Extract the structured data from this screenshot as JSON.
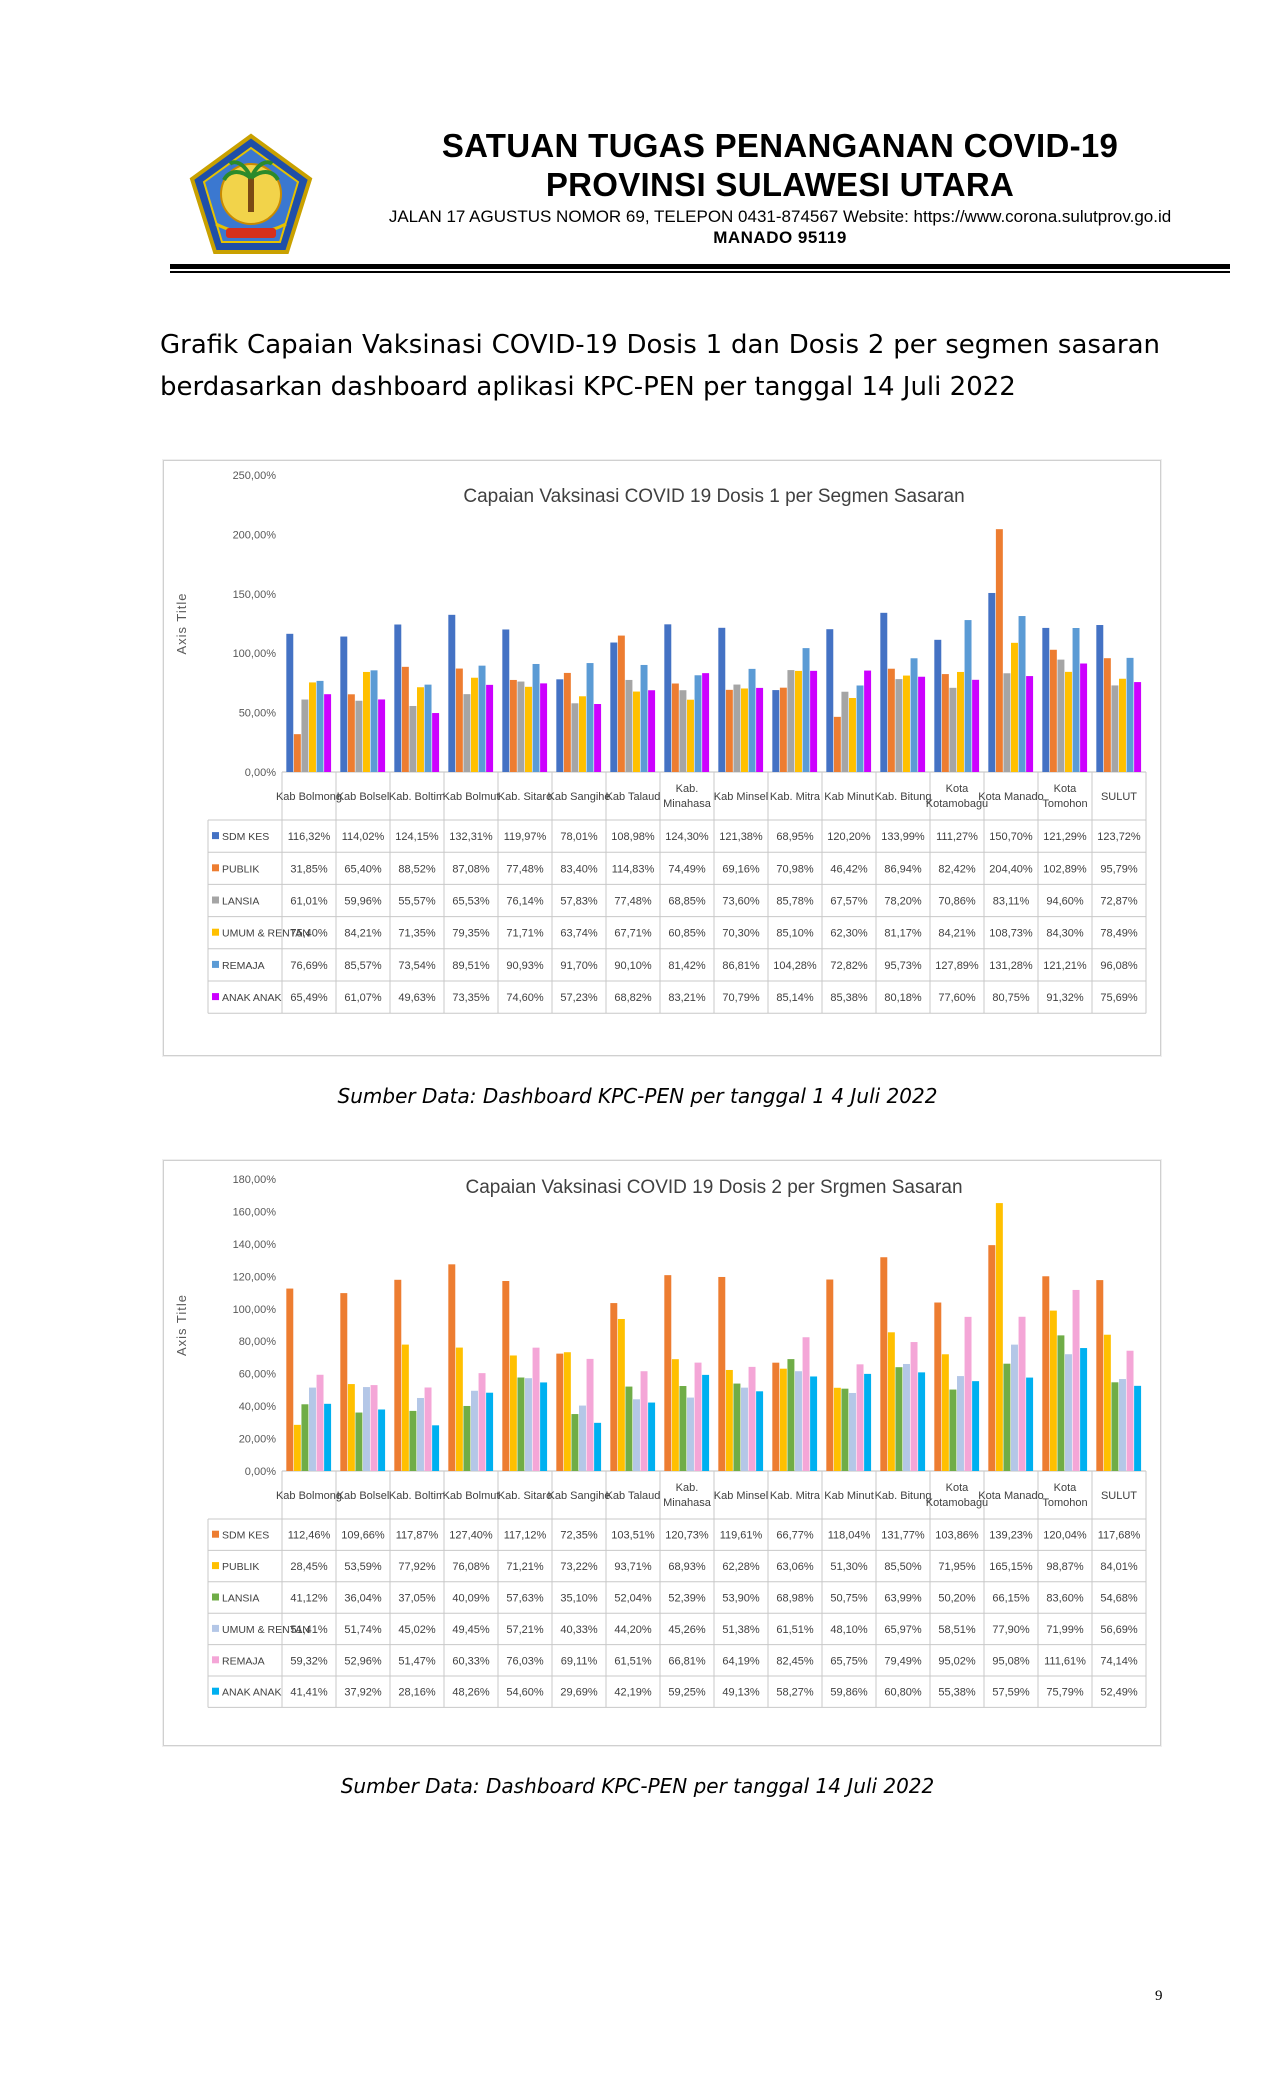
{
  "header": {
    "title_line1": "SATUAN TUGAS PENANGANAN COVID-19",
    "title_line2": "PROVINSI SULAWESI UTARA",
    "address": "JALAN 17 AGUSTUS NOMOR 69, TELEPON 0431-874567 Website: https://www.corona.sulutprov.go.id",
    "city": "MANADO  95119",
    "logo_text": "SULAWESI UTARA"
  },
  "intro": "Grafik Capaian Vaksinasi COVID-19 Dosis 1 dan Dosis 2 per segmen sasaran berdasarkan dashboard aplikasi KPC-PEN per tanggal 14 Juli 2022",
  "sources": {
    "chart1": "Sumber Data: Dashboard KPC-PEN per tanggal 1 4  Juli 2022",
    "chart2": "Sumber Data: Dashboard KPC-PEN per tanggal 14 Juli 2022"
  },
  "page_number": "9",
  "chart_data": [
    {
      "type": "bar",
      "title": "Capaian Vaksinasi COVID 19 Dosis 1 per Segmen Sasaran",
      "ylabel": "Axis Title",
      "ylim": [
        0,
        250
      ],
      "yticks": [
        "0,00%",
        "50,00%",
        "100,00%",
        "150,00%",
        "200,00%",
        "250,00%"
      ],
      "grid": false,
      "legend_placement": "data-table",
      "categories": [
        "Kab Bolmong",
        "Kab Bolsel",
        "Kab. Boltim",
        "Kab Bolmut",
        "Kab. Sitaro",
        "Kab Sangihe",
        "Kab Talaud",
        "Kab. Minahasa",
        "Kab Minsel",
        "Kab. Mitra",
        "Kab Minut",
        "Kab. Bitung",
        "Kota Kotamobagu",
        "Kota Manado",
        "Kota Tomohon",
        "SULUT"
      ],
      "series": [
        {
          "name": "SDM KES",
          "color": "#4472C4",
          "values": [
            116.32,
            114.02,
            124.15,
            132.31,
            119.97,
            78.01,
            108.98,
            124.3,
            121.38,
            68.95,
            120.2,
            133.99,
            111.27,
            150.7,
            121.29,
            123.72
          ],
          "labels": [
            "116,32%",
            "114,02%",
            "124,15%",
            "132,31%",
            "119,97%",
            "78,01%",
            "108,98%",
            "124,30%",
            "121,38%",
            "68,95%",
            "120,20%",
            "133,99%",
            "111,27%",
            "150,70%",
            "121,29%",
            "123,72%"
          ]
        },
        {
          "name": "PUBLIK",
          "color": "#ED7D31",
          "values": [
            31.85,
            65.4,
            88.52,
            87.08,
            77.48,
            83.4,
            114.83,
            74.49,
            69.16,
            70.98,
            46.42,
            86.94,
            82.42,
            204.4,
            102.89,
            95.79
          ],
          "labels": [
            "31,85%",
            "65,40%",
            "88,52%",
            "87,08%",
            "77,48%",
            "83,40%",
            "114,83%",
            "74,49%",
            "69,16%",
            "70,98%",
            "46,42%",
            "86,94%",
            "82,42%",
            "204,40%",
            "102,89%",
            "95,79%"
          ]
        },
        {
          "name": "LANSIA",
          "color": "#A5A5A5",
          "values": [
            61.01,
            59.96,
            55.57,
            65.53,
            76.14,
            57.83,
            77.48,
            68.85,
            73.6,
            85.78,
            67.57,
            78.2,
            70.86,
            83.11,
            94.6,
            72.87
          ],
          "labels": [
            "61,01%",
            "59,96%",
            "55,57%",
            "65,53%",
            "76,14%",
            "57,83%",
            "77,48%",
            "68,85%",
            "73,60%",
            "85,78%",
            "67,57%",
            "78,20%",
            "70,86%",
            "83,11%",
            "94,60%",
            "72,87%"
          ]
        },
        {
          "name": "UMUM & RENTAN",
          "color": "#FFC000",
          "values": [
            75.4,
            84.21,
            71.35,
            79.35,
            71.71,
            63.74,
            67.71,
            60.85,
            70.3,
            85.1,
            62.3,
            81.17,
            84.21,
            108.73,
            84.3,
            78.49
          ],
          "labels": [
            "75,40%",
            "84,21%",
            "71,35%",
            "79,35%",
            "71,71%",
            "63,74%",
            "67,71%",
            "60,85%",
            "70,30%",
            "85,10%",
            "62,30%",
            "81,17%",
            "84,21%",
            "108,73%",
            "84,30%",
            "78,49%"
          ]
        },
        {
          "name": "REMAJA",
          "color": "#5B9BD5",
          "values": [
            76.69,
            85.57,
            73.54,
            89.51,
            90.93,
            91.7,
            90.1,
            81.42,
            86.81,
            104.28,
            72.82,
            95.73,
            127.89,
            131.28,
            121.21,
            96.08
          ],
          "labels": [
            "76,69%",
            "85,57%",
            "73,54%",
            "89,51%",
            "90,93%",
            "91,70%",
            "90,10%",
            "81,42%",
            "86,81%",
            "104,28%",
            "72,82%",
            "95,73%",
            "127,89%",
            "131,28%",
            "121,21%",
            "96,08%"
          ]
        },
        {
          "name": "ANAK ANAK",
          "color": "#CC00FF",
          "values": [
            65.49,
            61.07,
            49.63,
            73.35,
            74.6,
            57.23,
            68.82,
            83.21,
            70.79,
            85.14,
            85.38,
            80.18,
            77.6,
            80.75,
            91.32,
            75.69
          ],
          "labels": [
            "65,49%",
            "61,07%",
            "49,63%",
            "73,35%",
            "74,60%",
            "57,23%",
            "68,82%",
            "83,21%",
            "70,79%",
            "85,14%",
            "85,38%",
            "80,18%",
            "77,60%",
            "80,75%",
            "91,32%",
            "75,69%"
          ]
        }
      ]
    },
    {
      "type": "bar",
      "title": "Capaian Vaksinasi COVID 19 Dosis 2 per Srgmen Sasaran",
      "ylabel": "Axis Title",
      "ylim": [
        0,
        180
      ],
      "yticks": [
        "0,00%",
        "20,00%",
        "40,00%",
        "60,00%",
        "80,00%",
        "100,00%",
        "120,00%",
        "140,00%",
        "160,00%",
        "180,00%"
      ],
      "grid": false,
      "legend_placement": "data-table",
      "categories": [
        "Kab Bolmong",
        "Kab Bolsel",
        "Kab. Boltim",
        "Kab Bolmut",
        "Kab. Sitaro",
        "Kab Sangihe",
        "Kab Talaud",
        "Kab. Minahasa",
        "Kab Minsel",
        "Kab. Mitra",
        "Kab Minut",
        "Kab. Bitung",
        "Kota Kotamobagu",
        "Kota Manado",
        "Kota Tomohon",
        "SULUT"
      ],
      "series": [
        {
          "name": "SDM KES",
          "color": "#ED7D31",
          "values": [
            112.46,
            109.66,
            117.87,
            127.4,
            117.12,
            72.35,
            103.51,
            120.73,
            119.61,
            66.77,
            118.04,
            131.77,
            103.86,
            139.23,
            120.04,
            117.68
          ],
          "labels": [
            "112,46%",
            "109,66%",
            "117,87%",
            "127,40%",
            "117,12%",
            "72,35%",
            "103,51%",
            "120,73%",
            "119,61%",
            "66,77%",
            "118,04%",
            "131,77%",
            "103,86%",
            "139,23%",
            "120,04%",
            "117,68%"
          ]
        },
        {
          "name": "PUBLIK",
          "color": "#FFC000",
          "values": [
            28.45,
            53.59,
            77.92,
            76.08,
            71.21,
            73.22,
            93.71,
            68.93,
            62.28,
            63.06,
            51.3,
            85.5,
            71.95,
            165.15,
            98.87,
            84.01
          ],
          "labels": [
            "28,45%",
            "53,59%",
            "77,92%",
            "76,08%",
            "71,21%",
            "73,22%",
            "93,71%",
            "68,93%",
            "62,28%",
            "63,06%",
            "51,30%",
            "85,50%",
            "71,95%",
            "165,15%",
            "98,87%",
            "84,01%"
          ]
        },
        {
          "name": "LANSIA",
          "color": "#70AD47",
          "values": [
            41.12,
            36.04,
            37.05,
            40.09,
            57.63,
            35.1,
            52.04,
            52.39,
            53.9,
            68.98,
            50.75,
            63.99,
            50.2,
            66.15,
            83.6,
            54.68
          ],
          "labels": [
            "41,12%",
            "36,04%",
            "37,05%",
            "40,09%",
            "57,63%",
            "35,10%",
            "52,04%",
            "52,39%",
            "53,90%",
            "68,98%",
            "50,75%",
            "63,99%",
            "50,20%",
            "66,15%",
            "83,60%",
            "54,68%"
          ]
        },
        {
          "name": "UMUM & RENTAN",
          "color": "#B4C7E7",
          "values": [
            51.41,
            51.74,
            45.02,
            49.45,
            57.21,
            40.33,
            44.2,
            45.26,
            51.38,
            61.51,
            48.1,
            65.97,
            58.51,
            77.9,
            71.99,
            56.69
          ],
          "labels": [
            "51,41%",
            "51,74%",
            "45,02%",
            "49,45%",
            "57,21%",
            "40,33%",
            "44,20%",
            "45,26%",
            "51,38%",
            "61,51%",
            "48,10%",
            "65,97%",
            "58,51%",
            "77,90%",
            "71,99%",
            "56,69%"
          ]
        },
        {
          "name": "REMAJA",
          "color": "#F4A6D7",
          "values": [
            59.32,
            52.96,
            51.47,
            60.33,
            76.03,
            69.11,
            61.51,
            66.81,
            64.19,
            82.45,
            65.75,
            79.49,
            95.02,
            95.08,
            111.61,
            74.14
          ],
          "labels": [
            "59,32%",
            "52,96%",
            "51,47%",
            "60,33%",
            "76,03%",
            "69,11%",
            "61,51%",
            "66,81%",
            "64,19%",
            "82,45%",
            "65,75%",
            "79,49%",
            "95,02%",
            "95,08%",
            "111,61%",
            "74,14%"
          ]
        },
        {
          "name": "ANAK ANAK",
          "color": "#00B0F0",
          "values": [
            41.41,
            37.92,
            28.16,
            48.26,
            54.6,
            29.69,
            42.19,
            59.25,
            49.13,
            58.27,
            59.86,
            60.8,
            55.38,
            57.59,
            75.79,
            52.49
          ],
          "labels": [
            "41,41%",
            "37,92%",
            "28,16%",
            "48,26%",
            "54,60%",
            "29,69%",
            "42,19%",
            "59,25%",
            "49,13%",
            "58,27%",
            "59,86%",
            "60,80%",
            "55,38%",
            "57,59%",
            "75,79%",
            "52,49%"
          ]
        }
      ]
    }
  ]
}
